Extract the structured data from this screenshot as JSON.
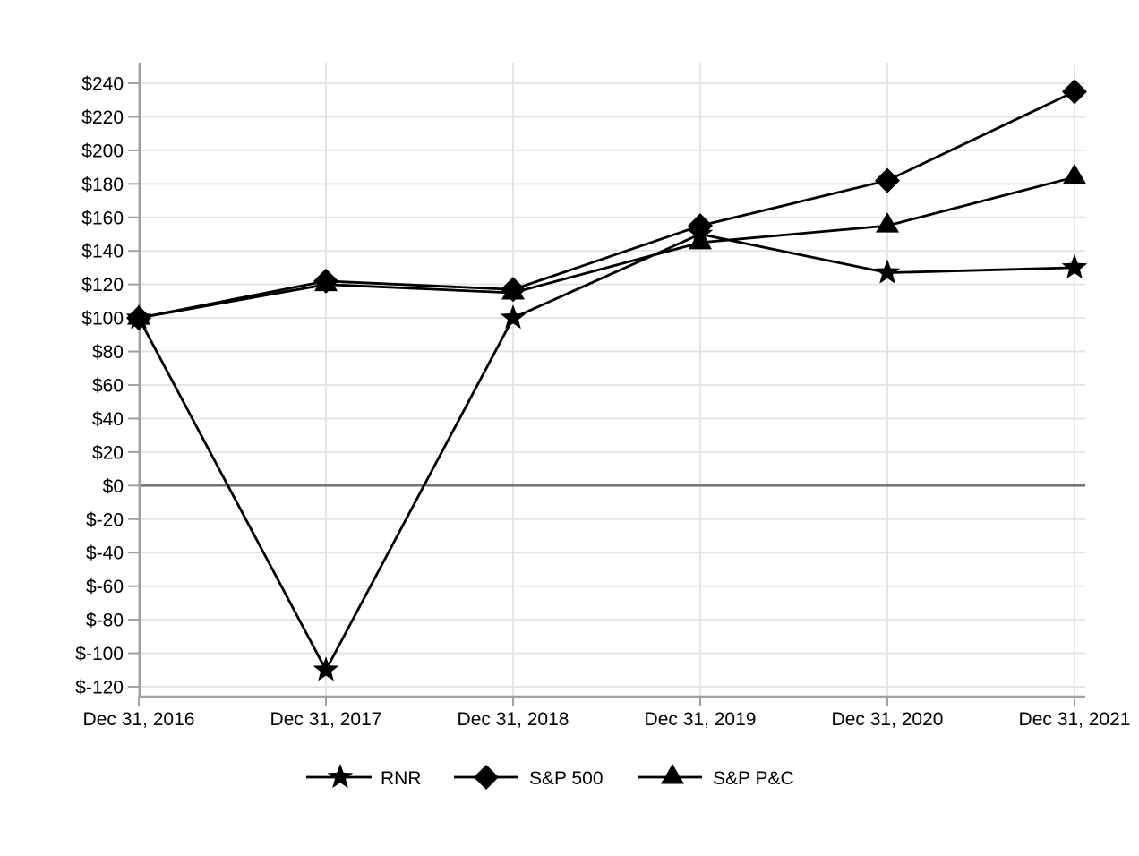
{
  "chart_data": {
    "type": "line",
    "title": "",
    "categories": [
      "Dec 31, 2016",
      "Dec 31, 2017",
      "Dec 31, 2018",
      "Dec 31, 2019",
      "Dec 31, 2020",
      "Dec 31, 2021"
    ],
    "series": [
      {
        "name": "RNR",
        "marker": "star",
        "values": [
          100,
          -110,
          100,
          150,
          127,
          130
        ]
      },
      {
        "name": "S&P 500",
        "marker": "diamond",
        "values": [
          100,
          122,
          117,
          155,
          182,
          235
        ]
      },
      {
        "name": "S&P P&C",
        "marker": "triangle",
        "values": [
          100,
          120,
          115,
          145,
          155,
          184
        ]
      }
    ],
    "y_axis": {
      "min": -120,
      "max": 240,
      "step": 20,
      "tick_prefix": "$"
    },
    "grid": true,
    "legend_position": "bottom",
    "colors": {
      "series": "#000000",
      "gridline": "#e4e4e4",
      "zero_line": "#6b6b6b",
      "axis": "#a0a0a0",
      "text": "#000000",
      "background": "#ffffff"
    }
  }
}
